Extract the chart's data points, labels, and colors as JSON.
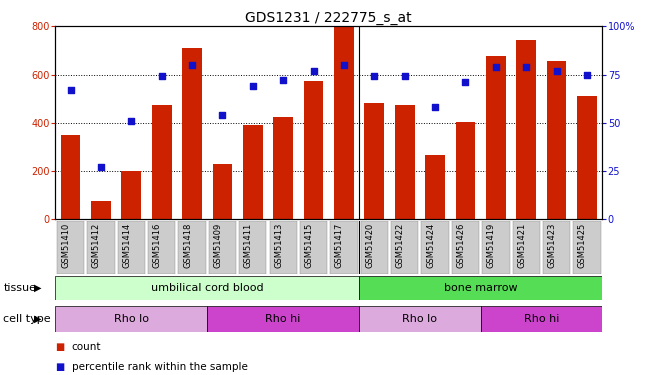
{
  "title": "GDS1231 / 222775_s_at",
  "samples": [
    "GSM51410",
    "GSM51412",
    "GSM51414",
    "GSM51416",
    "GSM51418",
    "GSM51409",
    "GSM51411",
    "GSM51413",
    "GSM51415",
    "GSM51417",
    "GSM51420",
    "GSM51422",
    "GSM51424",
    "GSM51426",
    "GSM51419",
    "GSM51421",
    "GSM51423",
    "GSM51425"
  ],
  "bar_values": [
    350,
    75,
    200,
    475,
    710,
    230,
    390,
    425,
    575,
    800,
    480,
    475,
    265,
    405,
    675,
    745,
    655,
    510
  ],
  "dot_values": [
    67,
    27,
    51,
    74,
    80,
    54,
    69,
    72,
    77,
    80,
    74,
    74,
    58,
    71,
    79,
    79,
    77,
    75
  ],
  "bar_color": "#cc2200",
  "dot_color": "#1111cc",
  "ylim_left": [
    0,
    800
  ],
  "ylim_right": [
    0,
    100
  ],
  "yticks_left": [
    0,
    200,
    400,
    600,
    800
  ],
  "yticks_right": [
    0,
    25,
    50,
    75,
    100
  ],
  "ytick_labels_right": [
    "0",
    "25",
    "50",
    "75",
    "100%"
  ],
  "tissue_groups": [
    {
      "label": "umbilical cord blood",
      "start": 0,
      "end": 10,
      "color": "#ccffcc"
    },
    {
      "label": "bone marrow",
      "start": 10,
      "end": 18,
      "color": "#55dd55"
    }
  ],
  "cell_type_groups": [
    {
      "label": "Rho lo",
      "start": 0,
      "end": 5,
      "color": "#ddaadd"
    },
    {
      "label": "Rho hi",
      "start": 5,
      "end": 10,
      "color": "#cc44cc"
    },
    {
      "label": "Rho lo",
      "start": 10,
      "end": 14,
      "color": "#ddaadd"
    },
    {
      "label": "Rho hi",
      "start": 14,
      "end": 18,
      "color": "#cc44cc"
    }
  ],
  "tissue_separator": 9.5,
  "cell_separators": [
    4.5,
    9.5,
    13.5
  ],
  "legend_count_color": "#cc2200",
  "legend_dot_color": "#1111cc",
  "tissue_label": "tissue",
  "cell_type_label": "cell type",
  "legend_count_label": "count",
  "legend_dot_label": "percentile rank within the sample",
  "background_color": "#ffffff",
  "title_fontsize": 10,
  "tick_fontsize": 7,
  "bar_tick_fontsize": 7,
  "sample_fontsize": 6,
  "row_label_fontsize": 8,
  "row_text_fontsize": 8,
  "legend_fontsize": 7.5
}
